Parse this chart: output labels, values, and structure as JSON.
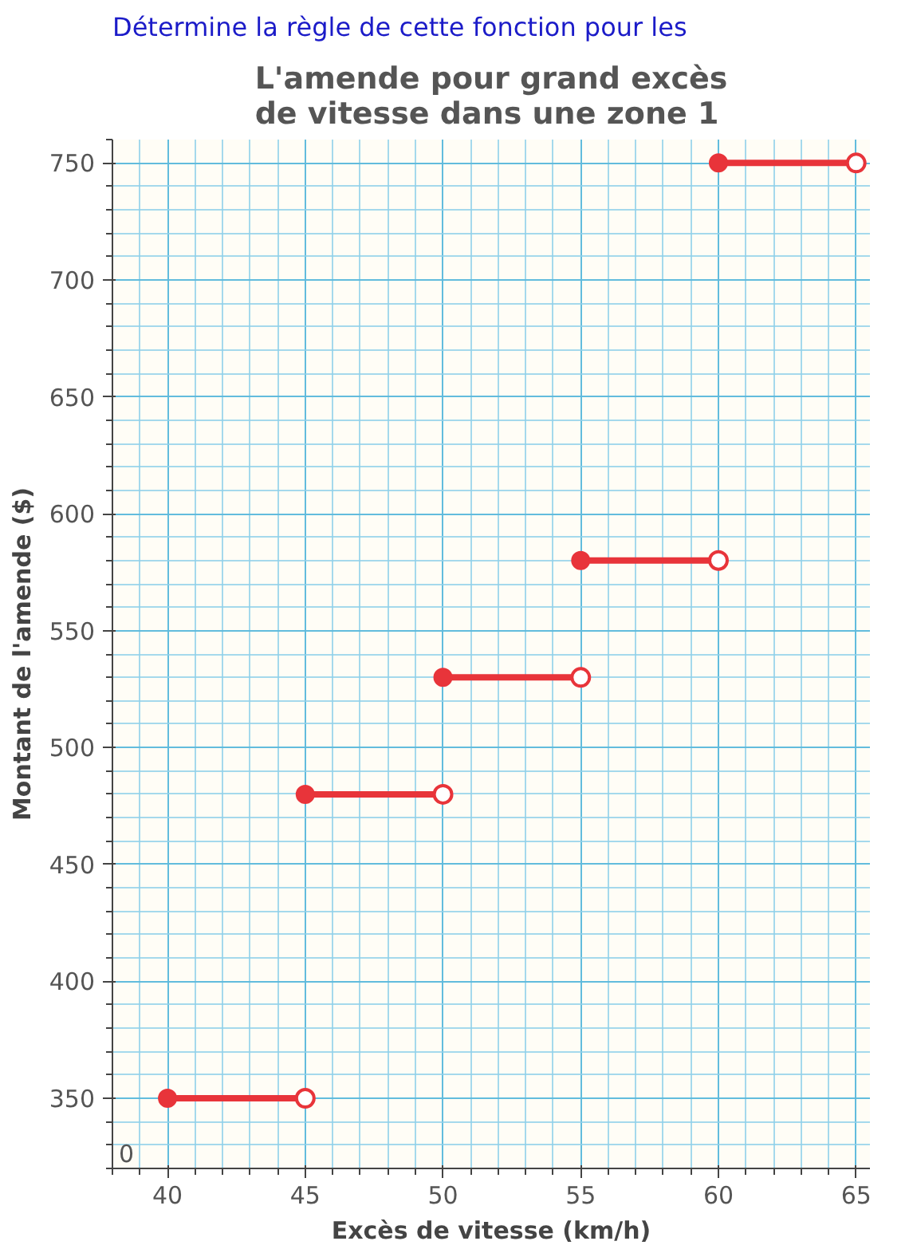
{
  "chart_data": {
    "type": "line",
    "title": "L'amende pour grand excès\nde vitesse dans une zone 1",
    "xlabel": "Excès de vitesse (km/h)",
    "ylabel": "Montant de l'amende ($)",
    "annotations": [
      "Détermine la règle de cette fonction pour les",
      "0"
    ],
    "xlim": [
      38,
      65.5
    ],
    "ylim": [
      320,
      760
    ],
    "xticks": [
      40,
      45,
      50,
      55,
      60,
      65
    ],
    "yticks": [
      350,
      400,
      450,
      500,
      550,
      600,
      650,
      700,
      750
    ],
    "grid": true,
    "marker": "circle",
    "series": [
      {
        "color": "#e8343a",
        "x": [
          40,
          45
        ],
        "values": [
          350,
          350
        ]
      },
      {
        "color": "#e8343a",
        "x": [
          45,
          50
        ],
        "values": [
          480,
          480
        ]
      },
      {
        "color": "#e8343a",
        "x": [
          50,
          55
        ],
        "values": [
          530,
          530
        ]
      },
      {
        "color": "#e8343a",
        "x": [
          55,
          60
        ],
        "values": [
          580,
          580
        ]
      },
      {
        "color": "#e8343a",
        "x": [
          60,
          65
        ],
        "values": [
          750,
          750
        ]
      }
    ]
  }
}
